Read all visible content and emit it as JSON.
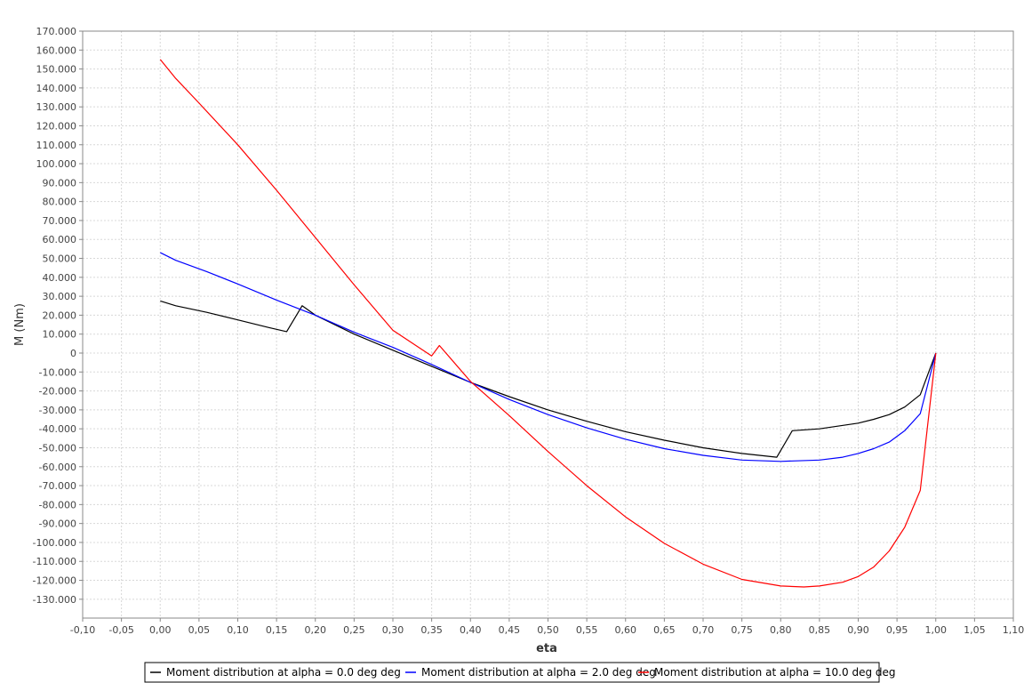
{
  "chart_data": {
    "type": "line",
    "title": "",
    "xlabel": "eta",
    "ylabel": "M (Nm)",
    "xlim": [
      -0.1,
      1.1
    ],
    "ylim": [
      -140,
      170
    ],
    "grid": true,
    "legend_placement": "bottom",
    "x_ticks": [
      -0.1,
      -0.05,
      0.0,
      0.05,
      0.1,
      0.15,
      0.2,
      0.25,
      0.3,
      0.35,
      0.4,
      0.45,
      0.5,
      0.55,
      0.6,
      0.65,
      0.7,
      0.75,
      0.8,
      0.85,
      0.9,
      0.95,
      1.0,
      1.05,
      1.1
    ],
    "x_tick_labels": [
      "-0,10",
      "-0,05",
      "0,00",
      "0,05",
      "0,10",
      "0,15",
      "0,20",
      "0,25",
      "0,30",
      "0,35",
      "0,40",
      "0,45",
      "0,50",
      "0,55",
      "0,60",
      "0,65",
      "0,70",
      "0,75",
      "0,80",
      "0,85",
      "0,90",
      "0,95",
      "1,00",
      "1,05",
      "1,10"
    ],
    "y_ticks": [
      170,
      160,
      150,
      140,
      130,
      120,
      110,
      100,
      90,
      80,
      70,
      60,
      50,
      40,
      30,
      20,
      10,
      0,
      -10,
      -20,
      -30,
      -40,
      -50,
      -60,
      -70,
      -80,
      -90,
      -100,
      -110,
      -120,
      -130
    ],
    "y_tick_labels": [
      "170.000",
      "160.000",
      "150.000",
      "140.000",
      "130.000",
      "120.000",
      "110.000",
      "100.000",
      "90.000",
      "80.000",
      "70.000",
      "60.000",
      "50.000",
      "40.000",
      "30.000",
      "20.000",
      "10.000",
      "0",
      "-10.000",
      "-20.000",
      "-30.000",
      "-40.000",
      "-50.000",
      "-60.000",
      "-70.000",
      "-80.000",
      "-90.000",
      "-100.000",
      "-110.000",
      "-120.000",
      "-130.000"
    ],
    "series": [
      {
        "name": "Moment distribution at alpha = 0.0 deg deg",
        "color": "#000000",
        "points": [
          [
            0.0,
            27.5
          ],
          [
            0.02,
            25.0
          ],
          [
            0.06,
            21.5
          ],
          [
            0.1,
            17.5
          ],
          [
            0.14,
            13.5
          ],
          [
            0.163,
            11.3
          ],
          [
            0.183,
            25.0
          ],
          [
            0.2,
            20.0
          ],
          [
            0.25,
            10.0
          ],
          [
            0.3,
            1.5
          ],
          [
            0.35,
            -7.0
          ],
          [
            0.4,
            -15.5
          ],
          [
            0.45,
            -23.0
          ],
          [
            0.5,
            -30.0
          ],
          [
            0.55,
            -36.0
          ],
          [
            0.6,
            -41.5
          ],
          [
            0.65,
            -46.0
          ],
          [
            0.7,
            -50.0
          ],
          [
            0.75,
            -53.0
          ],
          [
            0.795,
            -55.0
          ],
          [
            0.815,
            -41.0
          ],
          [
            0.85,
            -40.0
          ],
          [
            0.9,
            -37.0
          ],
          [
            0.92,
            -35.0
          ],
          [
            0.94,
            -32.5
          ],
          [
            0.96,
            -28.5
          ],
          [
            0.98,
            -22.0
          ],
          [
            1.0,
            0.0
          ]
        ]
      },
      {
        "name": "Moment distribution at alpha = 2.0 deg deg",
        "color": "#0000ff",
        "points": [
          [
            0.0,
            53.0
          ],
          [
            0.02,
            49.0
          ],
          [
            0.06,
            43.0
          ],
          [
            0.1,
            36.5
          ],
          [
            0.15,
            28.0
          ],
          [
            0.2,
            20.0
          ],
          [
            0.25,
            11.0
          ],
          [
            0.3,
            3.0
          ],
          [
            0.35,
            -6.0
          ],
          [
            0.4,
            -15.5
          ],
          [
            0.45,
            -24.5
          ],
          [
            0.5,
            -32.5
          ],
          [
            0.55,
            -39.5
          ],
          [
            0.6,
            -45.5
          ],
          [
            0.65,
            -50.5
          ],
          [
            0.7,
            -54.0
          ],
          [
            0.75,
            -56.5
          ],
          [
            0.8,
            -57.2
          ],
          [
            0.85,
            -56.5
          ],
          [
            0.88,
            -55.0
          ],
          [
            0.9,
            -53.0
          ],
          [
            0.92,
            -50.5
          ],
          [
            0.94,
            -47.0
          ],
          [
            0.96,
            -41.0
          ],
          [
            0.98,
            -32.0
          ],
          [
            1.0,
            0.0
          ]
        ]
      },
      {
        "name": "Moment distribution at alpha = 10.0 deg deg",
        "color": "#ff0000",
        "points": [
          [
            0.0,
            155.0
          ],
          [
            0.02,
            145.0
          ],
          [
            0.05,
            132.0
          ],
          [
            0.1,
            110.0
          ],
          [
            0.15,
            86.0
          ],
          [
            0.2,
            61.0
          ],
          [
            0.25,
            36.0
          ],
          [
            0.3,
            12.0
          ],
          [
            0.35,
            -1.5
          ],
          [
            0.36,
            4.0
          ],
          [
            0.4,
            -15.0
          ],
          [
            0.45,
            -33.0
          ],
          [
            0.5,
            -52.0
          ],
          [
            0.55,
            -70.0
          ],
          [
            0.6,
            -86.5
          ],
          [
            0.65,
            -100.5
          ],
          [
            0.7,
            -111.5
          ],
          [
            0.75,
            -119.5
          ],
          [
            0.8,
            -123.0
          ],
          [
            0.83,
            -123.5
          ],
          [
            0.85,
            -123.0
          ],
          [
            0.88,
            -121.0
          ],
          [
            0.9,
            -118.0
          ],
          [
            0.92,
            -113.0
          ],
          [
            0.94,
            -104.5
          ],
          [
            0.96,
            -92.0
          ],
          [
            0.98,
            -72.5
          ],
          [
            1.0,
            0.0
          ]
        ]
      }
    ]
  }
}
